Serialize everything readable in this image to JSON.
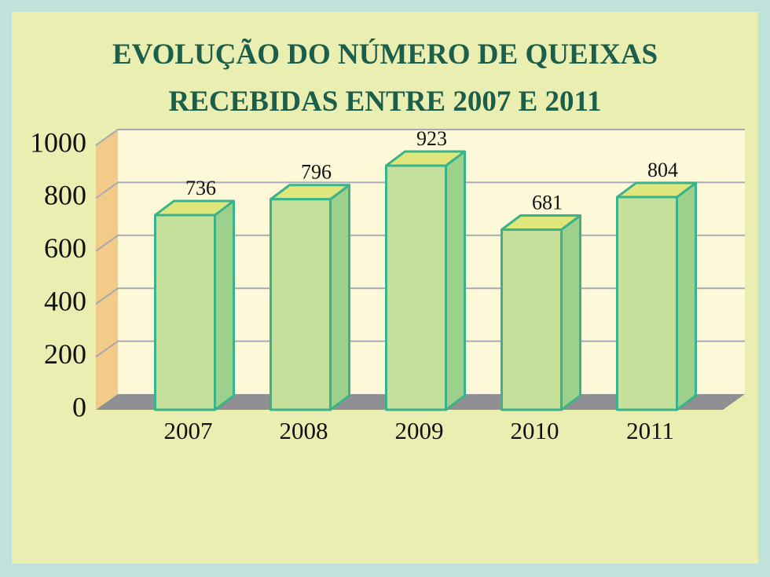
{
  "chart_data": {
    "type": "bar3d",
    "title": "EVOLUÇÃO DO NÚMERO DE QUEIXAS RECEBIDAS ENTRE 2007 E 2011",
    "categories": [
      "2007",
      "2008",
      "2009",
      "2010",
      "2011"
    ],
    "values": [
      736,
      796,
      923,
      681,
      804
    ],
    "color": "#c5e09a",
    "ylim": [
      0,
      1000
    ],
    "yticks": [
      0,
      200,
      400,
      600,
      800,
      1000
    ],
    "grid": true
  }
}
